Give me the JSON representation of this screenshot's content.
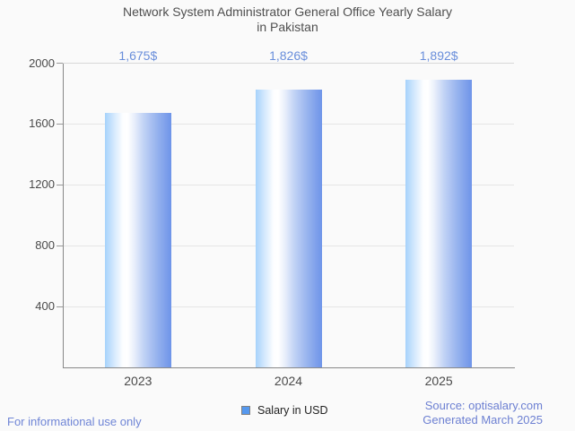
{
  "title": {
    "line1": "Network System Administrator General Office Yearly Salary",
    "line2": "in Pakistan"
  },
  "chart_data": {
    "type": "bar",
    "title": "Network System Administrator General Office Yearly Salary in Pakistan",
    "categories": [
      "2023",
      "2024",
      "2025"
    ],
    "series": [
      {
        "name": "Salary in USD",
        "values": [
          1675,
          1826,
          1892
        ]
      }
    ],
    "annotations": [
      "1,675$",
      "1,826$",
      "1,892$"
    ],
    "xlabel": "",
    "ylabel": "",
    "ylim": [
      0,
      2000
    ],
    "yticks": [
      400,
      800,
      1200,
      1600,
      2000
    ],
    "grid": true,
    "legend_position": "bottom"
  },
  "legend": {
    "label": "Salary in USD",
    "swatch_color": "#5598ee"
  },
  "footer": {
    "left": "For informational use only",
    "source": "Source: optisalary.com",
    "generated": "Generated March 2025"
  },
  "colors": {
    "background": "#fafafa",
    "title_text": "#4f4f4f",
    "axis_text": "#4a4a4a",
    "annotation_text": "#698edb",
    "bar_gradient_left": "#a6d2fb",
    "bar_gradient_mid": "#ffffff",
    "bar_gradient_right": "#6e94e9",
    "gridline": "#e5e5e5",
    "axis_line": "#888888",
    "footer_link": "#6d80d2",
    "disclaimer_text": "#6f85d6"
  }
}
